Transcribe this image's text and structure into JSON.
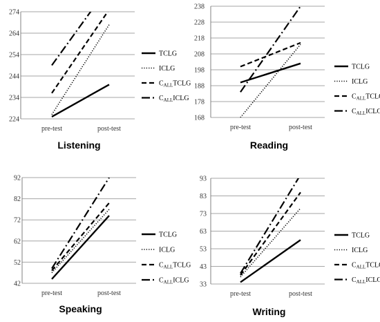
{
  "chart_data": [
    {
      "type": "line",
      "title": "Listening",
      "categories": [
        "pre-test",
        "post-test"
      ],
      "ylim": [
        224,
        274
      ],
      "yticks": [
        224,
        234,
        244,
        254,
        264,
        274
      ],
      "series": [
        {
          "name": "TCLG",
          "values": [
            225,
            240
          ]
        },
        {
          "name": "ICLG",
          "values": [
            226,
            268
          ]
        },
        {
          "name": "C_ALL TCLG",
          "values": [
            236,
            275
          ]
        },
        {
          "name": "C_ALL ICLG",
          "values": [
            249,
            286
          ]
        }
      ]
    },
    {
      "type": "line",
      "title": "Reading",
      "categories": [
        "pre-test",
        "post-test"
      ],
      "ylim": [
        168,
        238
      ],
      "yticks": [
        168,
        178,
        188,
        198,
        208,
        218,
        228,
        238
      ],
      "series": [
        {
          "name": "TCLG",
          "values": [
            190,
            202
          ]
        },
        {
          "name": "ICLG",
          "values": [
            168,
            214
          ]
        },
        {
          "name": "C_ALL TCLG",
          "values": [
            200,
            215
          ]
        },
        {
          "name": "C_ALL ICLG",
          "values": [
            184,
            238
          ]
        }
      ]
    },
    {
      "type": "line",
      "title": "Speaking",
      "categories": [
        "pre-test",
        "post-test"
      ],
      "ylim": [
        42,
        92
      ],
      "yticks": [
        42,
        52,
        62,
        72,
        82,
        92
      ],
      "series": [
        {
          "name": "TCLG",
          "values": [
            44,
            74
          ]
        },
        {
          "name": "ICLG",
          "values": [
            47,
            77
          ]
        },
        {
          "name": "C_ALL TCLG",
          "values": [
            48,
            80
          ]
        },
        {
          "name": "C_ALL ICLG",
          "values": [
            49,
            92
          ]
        }
      ]
    },
    {
      "type": "line",
      "title": "Writing",
      "categories": [
        "pre-test",
        "post-test"
      ],
      "ylim": [
        33,
        93
      ],
      "yticks": [
        33,
        43,
        53,
        63,
        73,
        83,
        93
      ],
      "series": [
        {
          "name": "TCLG",
          "values": [
            34,
            58
          ]
        },
        {
          "name": "ICLG",
          "values": [
            37,
            76
          ]
        },
        {
          "name": "C_ALL TCLG",
          "values": [
            38,
            85
          ]
        },
        {
          "name": "C_ALL ICLG",
          "values": [
            39,
            95
          ]
        }
      ]
    }
  ],
  "legend": [
    {
      "key": "tclg",
      "prefix": "",
      "sub": "",
      "rest": "TCLG",
      "style": "solid"
    },
    {
      "key": "iclg",
      "prefix": "",
      "sub": "",
      "rest": "ICLG",
      "style": "dotted"
    },
    {
      "key": "call-tclg",
      "prefix": "C",
      "sub": "ALL",
      "rest": "TCLG",
      "style": "dashed"
    },
    {
      "key": "call-iclg",
      "prefix": "C",
      "sub": "ALL",
      "rest": "ICLG",
      "style": "dashdot"
    }
  ],
  "colors": {
    "line": "#000000",
    "grid": "#a6a6a6",
    "axis": "#808080"
  }
}
